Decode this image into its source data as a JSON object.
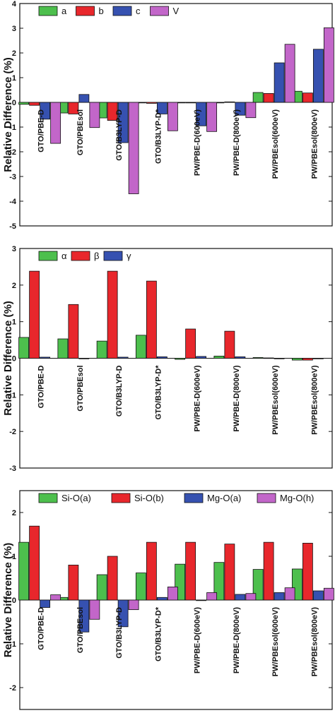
{
  "categories": [
    "GTO/PBE-D",
    "GTO/PBEsol",
    "GTO/B3LYP-D",
    "GTO/B3LYP-D*",
    "PW/PBE-D(600eV)",
    "PW/PBE-D(800eV)",
    "PW/PBEsol(600eV)",
    "PW/PBEsol(800eV)"
  ],
  "colors": {
    "green": "#4dbf4d",
    "red": "#e8272c",
    "blue": "#3651b0",
    "purple": "#c266c9"
  },
  "chart_data": [
    {
      "type": "bar",
      "ylabel": "Relative Difference (%)",
      "ylim": [
        -5,
        4
      ],
      "yticks": [
        "-5",
        "-4",
        "-3",
        "-2",
        "-1",
        "0",
        "1",
        "2",
        "3",
        "4"
      ],
      "legend_position": "top-left",
      "grid": false,
      "series": [
        {
          "name": "a",
          "color": "#4dbf4d",
          "values": [
            -0.08,
            -0.43,
            -0.63,
            -0.02,
            -0.02,
            0.0,
            0.4,
            0.45
          ]
        },
        {
          "name": "b",
          "color": "#e8272c",
          "values": [
            -0.12,
            -0.47,
            -0.73,
            -0.04,
            -0.02,
            0.02,
            0.36,
            0.38
          ]
        },
        {
          "name": "c",
          "color": "#3651b0",
          "values": [
            -0.68,
            0.32,
            -1.63,
            -0.47,
            -0.95,
            -0.52,
            1.6,
            2.15
          ]
        },
        {
          "name": "V",
          "color": "#c266c9",
          "values": [
            -1.66,
            -1.02,
            -3.7,
            -1.15,
            -1.18,
            -0.62,
            2.35,
            3.02
          ]
        }
      ]
    },
    {
      "type": "bar",
      "ylabel": "Relative Difference (%)",
      "ylim": [
        -3,
        3
      ],
      "yticks": [
        "-3",
        "-2",
        "-1",
        "0",
        "1",
        "2",
        "3"
      ],
      "legend_position": "top-left",
      "grid": false,
      "series": [
        {
          "name": "α",
          "color": "#4dbf4d",
          "values": [
            0.57,
            0.53,
            0.47,
            0.63,
            -0.03,
            0.06,
            0.02,
            -0.05
          ]
        },
        {
          "name": "β",
          "color": "#e8272c",
          "values": [
            2.38,
            1.47,
            2.38,
            2.11,
            0.8,
            0.74,
            0.01,
            -0.05
          ]
        },
        {
          "name": "γ",
          "color": "#3651b0",
          "values": [
            0.03,
            0.0,
            0.03,
            0.04,
            0.05,
            0.04,
            0.0,
            0.0
          ]
        }
      ]
    },
    {
      "type": "bar",
      "ylabel": "Relative Difference (%)",
      "ylim": [
        -2.5,
        2.5
      ],
      "yticks": [
        "-2",
        "-1",
        "0",
        "1",
        "2"
      ],
      "legend_position": "top",
      "grid": false,
      "series": [
        {
          "name": "Si-O(a)",
          "color": "#4dbf4d",
          "values": [
            1.32,
            0.06,
            0.58,
            0.62,
            0.82,
            0.86,
            0.7,
            0.71
          ]
        },
        {
          "name": "Si-O(b)",
          "color": "#e8272c",
          "values": [
            1.69,
            0.8,
            1.0,
            1.32,
            1.32,
            1.28,
            1.32,
            1.3
          ]
        },
        {
          "name": "Mg-O(a)",
          "color": "#3651b0",
          "values": [
            -0.17,
            -0.73,
            -0.61,
            0.06,
            0.0,
            0.13,
            0.17,
            0.21
          ]
        },
        {
          "name": "Mg-O(h)",
          "color": "#c266c9",
          "values": [
            0.12,
            -0.44,
            -0.22,
            0.3,
            0.17,
            0.15,
            0.28,
            0.27
          ]
        }
      ]
    }
  ]
}
